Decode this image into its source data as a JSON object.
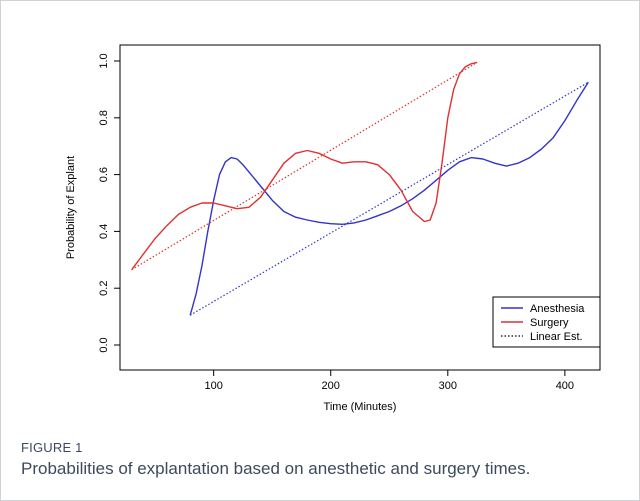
{
  "figure": {
    "label": "FIGURE 1",
    "caption": "Probabilities of explantation based on anesthetic and surgery times."
  },
  "chart_data": {
    "type": "line",
    "xlabel": "Time (Minutes)",
    "ylabel": "Probability of Explant",
    "xlim": [
      20,
      430
    ],
    "ylim": [
      0,
      1.0
    ],
    "xticks": [
      100,
      200,
      300,
      400
    ],
    "yticks": [
      0.0,
      0.2,
      0.4,
      0.6,
      0.8,
      1.0
    ],
    "xtick_labels": [
      "100",
      "200",
      "300",
      "400"
    ],
    "ytick_labels": [
      "0.0",
      "0.2",
      "0.4",
      "0.6",
      "0.8",
      "1.0"
    ],
    "grid": false,
    "legend_position": "bottom-right",
    "series": [
      {
        "name": "Anesthesia",
        "color": "#3333cc",
        "style": "solid",
        "x": [
          80,
          85,
          90,
          95,
          100,
          105,
          110,
          115,
          120,
          125,
          130,
          140,
          150,
          160,
          170,
          180,
          190,
          200,
          210,
          220,
          230,
          240,
          250,
          260,
          270,
          280,
          290,
          300,
          310,
          320,
          330,
          340,
          350,
          360,
          370,
          380,
          390,
          400,
          410,
          420
        ],
        "y": [
          0.105,
          0.18,
          0.28,
          0.4,
          0.51,
          0.6,
          0.645,
          0.66,
          0.655,
          0.635,
          0.61,
          0.56,
          0.51,
          0.47,
          0.45,
          0.44,
          0.432,
          0.427,
          0.425,
          0.43,
          0.44,
          0.455,
          0.47,
          0.49,
          0.515,
          0.545,
          0.58,
          0.615,
          0.645,
          0.66,
          0.655,
          0.64,
          0.63,
          0.64,
          0.66,
          0.69,
          0.73,
          0.79,
          0.86,
          0.925
        ]
      },
      {
        "name": "Surgery",
        "color": "#e03030",
        "style": "solid",
        "x": [
          30,
          40,
          50,
          60,
          70,
          80,
          90,
          100,
          110,
          120,
          130,
          140,
          150,
          160,
          170,
          180,
          190,
          200,
          210,
          220,
          230,
          240,
          250,
          260,
          270,
          280,
          285,
          290,
          295,
          300,
          305,
          310,
          315,
          320,
          325
        ],
        "y": [
          0.265,
          0.32,
          0.375,
          0.42,
          0.46,
          0.485,
          0.5,
          0.5,
          0.49,
          0.48,
          0.485,
          0.52,
          0.58,
          0.64,
          0.675,
          0.685,
          0.675,
          0.655,
          0.64,
          0.645,
          0.645,
          0.635,
          0.6,
          0.545,
          0.47,
          0.435,
          0.44,
          0.5,
          0.64,
          0.8,
          0.9,
          0.955,
          0.98,
          0.99,
          0.995
        ]
      },
      {
        "name": "Linear Est.",
        "color": "#000000",
        "style": "dotted",
        "legend_only": true
      },
      {
        "name": "",
        "color": "#e03030",
        "style": "dotted",
        "x": [
          30,
          325
        ],
        "y": [
          0.265,
          0.995
        ]
      },
      {
        "name": "",
        "color": "#3333cc",
        "style": "dotted",
        "x": [
          80,
          420
        ],
        "y": [
          0.105,
          0.925
        ]
      }
    ]
  }
}
